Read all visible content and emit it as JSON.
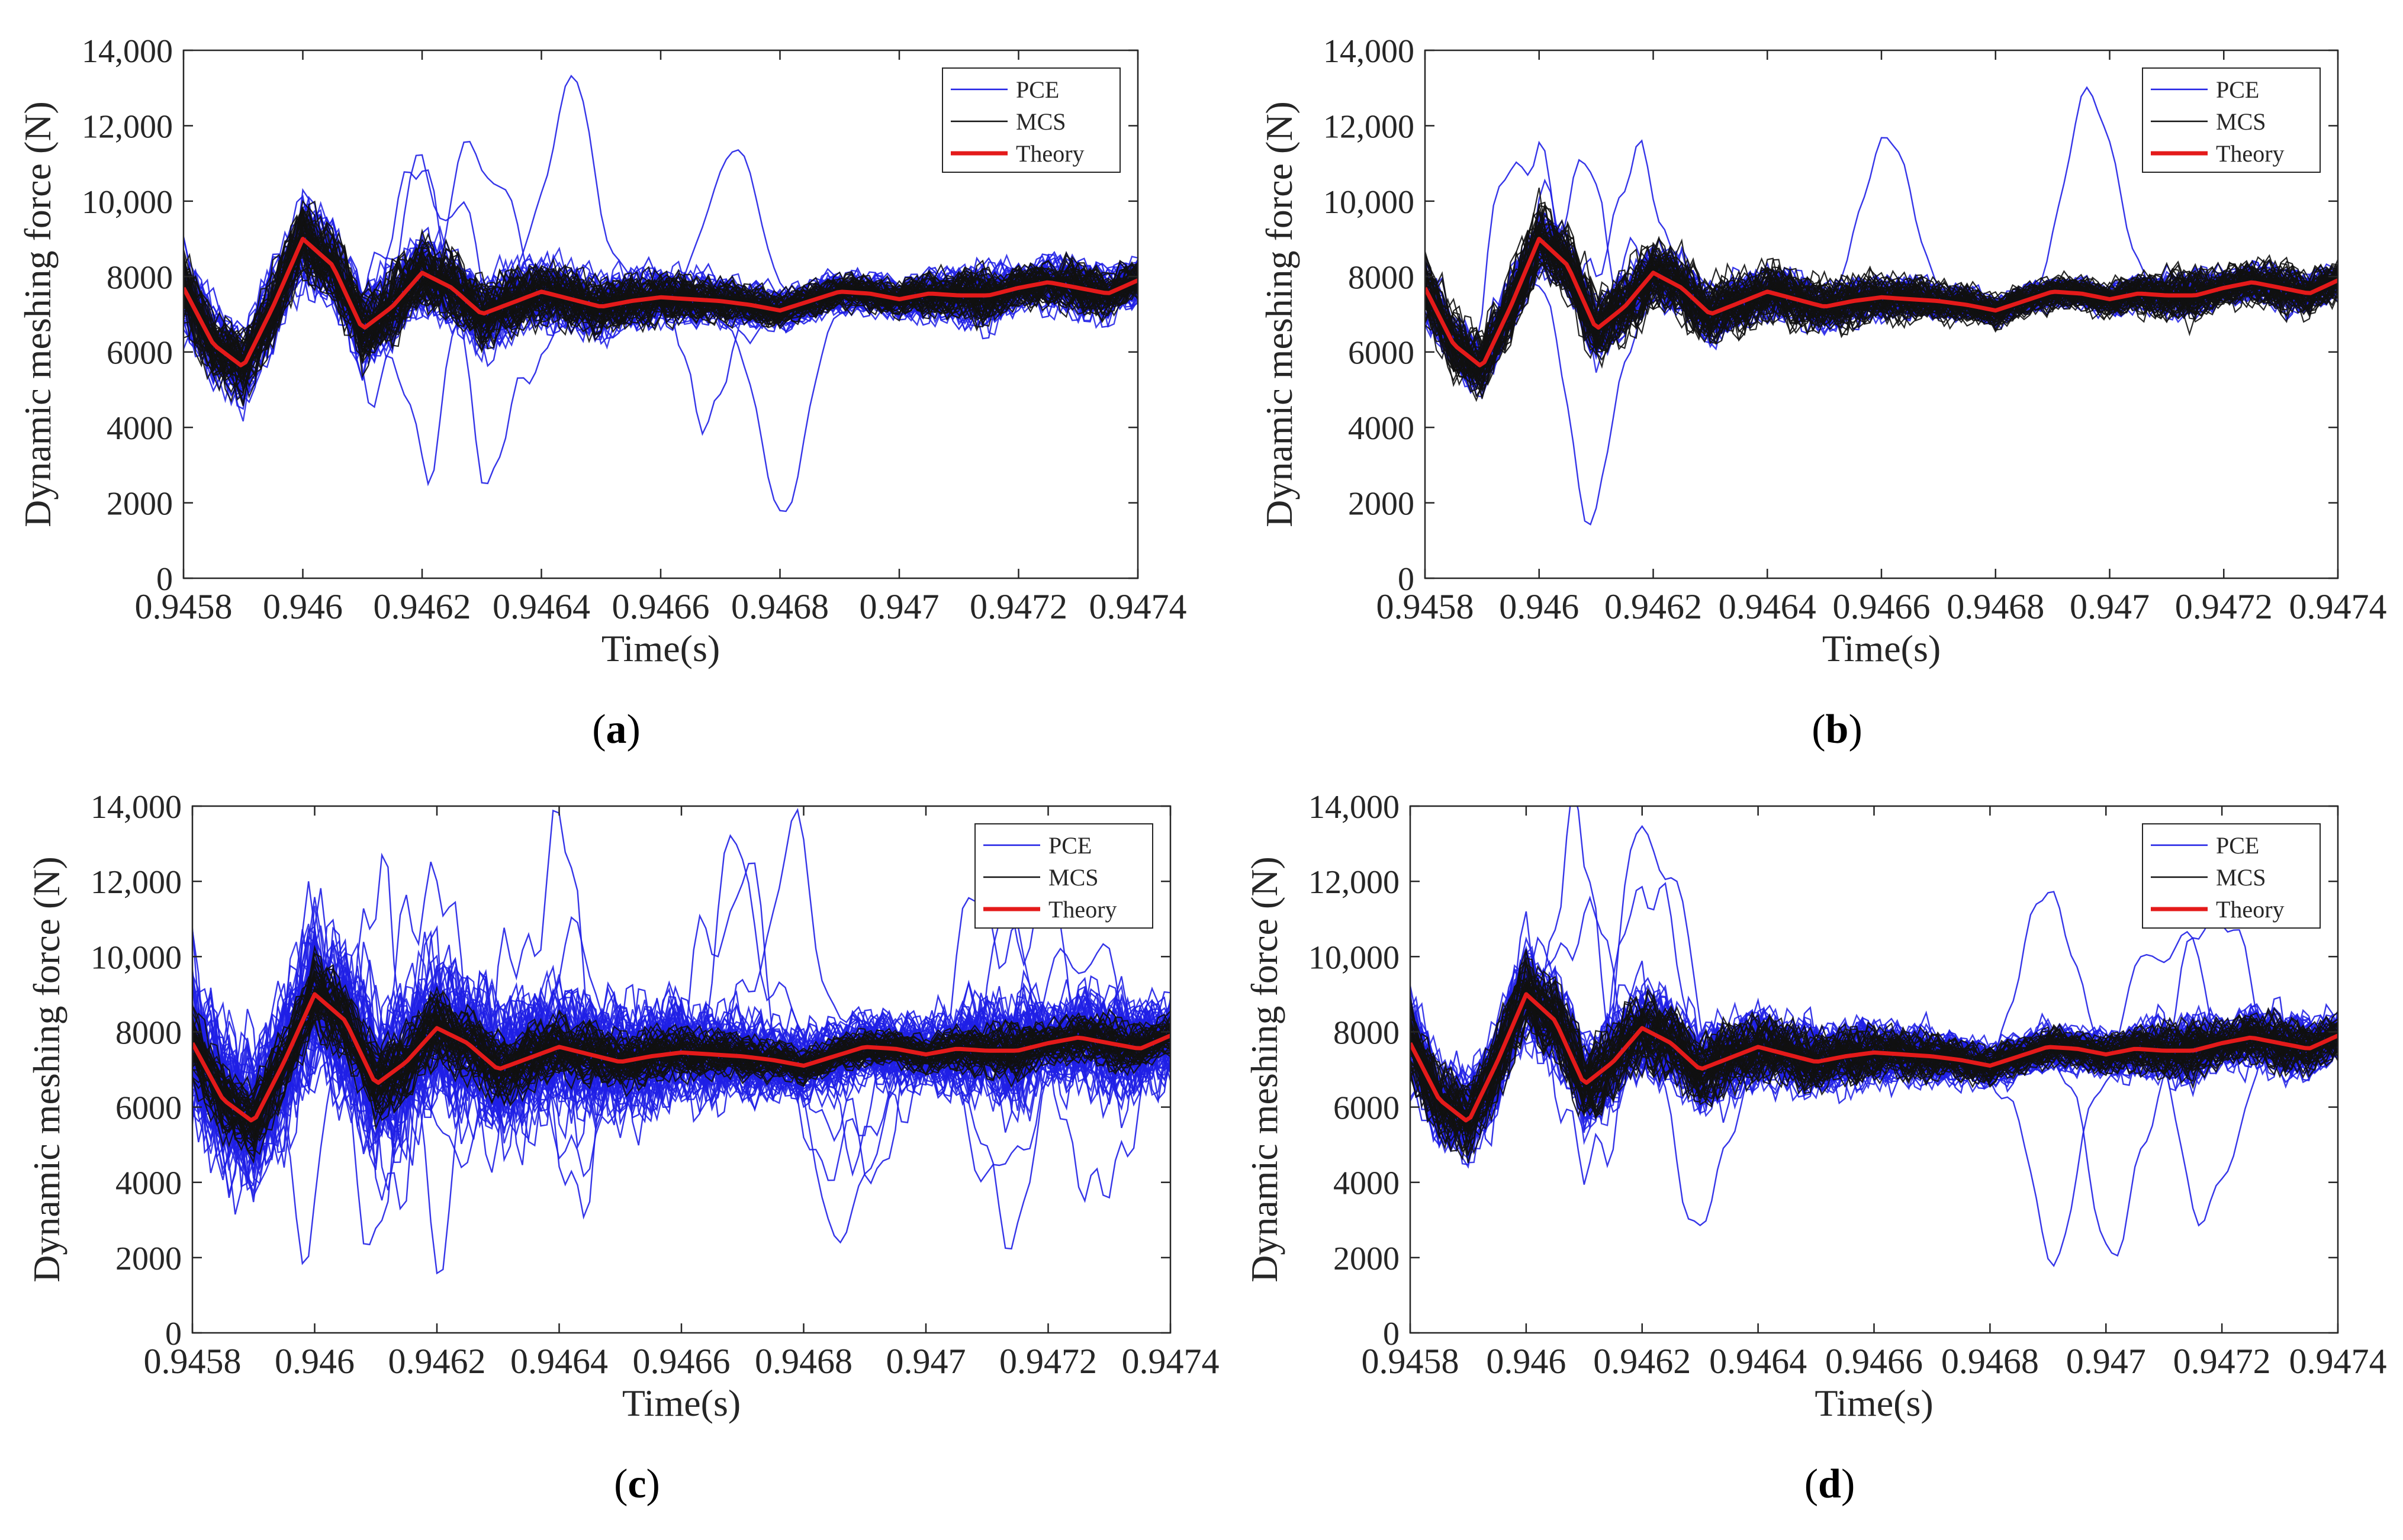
{
  "figure": {
    "colors": {
      "pce": "#1f1fe6",
      "mcs": "#111111",
      "theory": "#e41a1a",
      "axis": "#262626"
    }
  },
  "chart_data": [
    {
      "panel": "a",
      "caption_letter": "a",
      "type": "line",
      "xlabel": "Time(s)",
      "ylabel": "Dynamic meshing force (N)",
      "xlim": [
        0.9458,
        0.9474
      ],
      "ylim": [
        0,
        14000
      ],
      "xticks": [
        0.9458,
        0.946,
        0.9462,
        0.9464,
        0.9466,
        0.9468,
        0.947,
        0.9472,
        0.9474
      ],
      "xtick_labels": [
        "0.9458",
        "0.946",
        "0.9462",
        "0.9464",
        "0.9466",
        "0.9468",
        "0.947",
        "0.9472",
        "0.9474"
      ],
      "yticks": [
        0,
        2000,
        4000,
        6000,
        8000,
        10000,
        12000,
        14000
      ],
      "ytick_labels": [
        "0",
        "2000",
        "4000",
        "6000",
        "8000",
        "10,000",
        "12,000",
        "14,000"
      ],
      "legend": {
        "position": "top-right",
        "entries": [
          "PCE",
          "MCS",
          "Theory"
        ]
      },
      "spread": {
        "pce": 1.0,
        "mcs": 0.9,
        "outliers": 3
      },
      "series": [
        {
          "name": "Theory",
          "x": [
            0.9458,
            0.94585,
            0.9459,
            0.94595,
            0.946,
            0.94605,
            0.9461,
            0.94615,
            0.9462,
            0.94625,
            0.9463,
            0.94635,
            0.9464,
            0.94645,
            0.9465,
            0.94655,
            0.9466,
            0.94665,
            0.9467,
            0.94675,
            0.9468,
            0.94685,
            0.9469,
            0.94695,
            0.947,
            0.94705,
            0.9471,
            0.94715,
            0.9472,
            0.94725,
            0.9473,
            0.94735,
            0.9474
          ],
          "y": [
            7700,
            6200,
            5600,
            7200,
            9000,
            8300,
            6600,
            7200,
            8100,
            7700,
            7000,
            7300,
            7600,
            7400,
            7200,
            7350,
            7450,
            7400,
            7350,
            7250,
            7100,
            7350,
            7600,
            7550,
            7400,
            7550,
            7500,
            7500,
            7700,
            7850,
            7700,
            7550,
            7900
          ]
        }
      ]
    },
    {
      "panel": "b",
      "caption_letter": "b",
      "type": "line",
      "xlabel": "Time(s)",
      "ylabel": "Dynamic meshing force (N)",
      "xlim": [
        0.9458,
        0.9474
      ],
      "ylim": [
        0,
        14000
      ],
      "xticks": [
        0.9458,
        0.946,
        0.9462,
        0.9464,
        0.9466,
        0.9468,
        0.947,
        0.9472,
        0.9474
      ],
      "xtick_labels": [
        "0.9458",
        "0.946",
        "0.9462",
        "0.9464",
        "0.9466",
        "0.9468",
        "0.947",
        "0.9472",
        "0.9474"
      ],
      "yticks": [
        0,
        2000,
        4000,
        6000,
        8000,
        10000,
        12000,
        14000
      ],
      "ytick_labels": [
        "0",
        "2000",
        "4000",
        "6000",
        "8000",
        "10,000",
        "12,000",
        "14,000"
      ],
      "legend": {
        "position": "top-right",
        "entries": [
          "PCE",
          "MCS",
          "Theory"
        ]
      },
      "spread": {
        "pce": 0.75,
        "mcs": 0.9,
        "outliers": 2
      },
      "series": [
        {
          "name": "Theory",
          "x": [
            0.9458,
            0.94585,
            0.9459,
            0.94595,
            0.946,
            0.94605,
            0.9461,
            0.94615,
            0.9462,
            0.94625,
            0.9463,
            0.94635,
            0.9464,
            0.94645,
            0.9465,
            0.94655,
            0.9466,
            0.94665,
            0.9467,
            0.94675,
            0.9468,
            0.94685,
            0.9469,
            0.94695,
            0.947,
            0.94705,
            0.9471,
            0.94715,
            0.9472,
            0.94725,
            0.9473,
            0.94735,
            0.9474
          ],
          "y": [
            7700,
            6200,
            5600,
            7200,
            9000,
            8300,
            6600,
            7200,
            8100,
            7700,
            7000,
            7300,
            7600,
            7400,
            7200,
            7350,
            7450,
            7400,
            7350,
            7250,
            7100,
            7350,
            7600,
            7550,
            7400,
            7550,
            7500,
            7500,
            7700,
            7850,
            7700,
            7550,
            7900
          ]
        }
      ]
    },
    {
      "panel": "c",
      "caption_letter": "c",
      "type": "line",
      "xlabel": "Time(s)",
      "ylabel": "Dynamic meshing force (N)",
      "xlim": [
        0.9458,
        0.9474
      ],
      "ylim": [
        0,
        14000
      ],
      "xticks": [
        0.9458,
        0.946,
        0.9462,
        0.9464,
        0.9466,
        0.9468,
        0.947,
        0.9472,
        0.9474
      ],
      "xtick_labels": [
        "0.9458",
        "0.946",
        "0.9462",
        "0.9464",
        "0.9466",
        "0.9468",
        "0.947",
        "0.9472",
        "0.9474"
      ],
      "yticks": [
        0,
        2000,
        4000,
        6000,
        8000,
        10000,
        12000,
        14000
      ],
      "ytick_labels": [
        "0",
        "2000",
        "4000",
        "6000",
        "8000",
        "10,000",
        "12,000",
        "14,000"
      ],
      "legend": {
        "position": "top-right",
        "entries": [
          "PCE",
          "MCS",
          "Theory"
        ]
      },
      "spread": {
        "pce": 1.8,
        "mcs": 0.9,
        "outliers": 8
      },
      "series": [
        {
          "name": "Theory",
          "x": [
            0.9458,
            0.94585,
            0.9459,
            0.94595,
            0.946,
            0.94605,
            0.9461,
            0.94615,
            0.9462,
            0.94625,
            0.9463,
            0.94635,
            0.9464,
            0.94645,
            0.9465,
            0.94655,
            0.9466,
            0.94665,
            0.9467,
            0.94675,
            0.9468,
            0.94685,
            0.9469,
            0.94695,
            0.947,
            0.94705,
            0.9471,
            0.94715,
            0.9472,
            0.94725,
            0.9473,
            0.94735,
            0.9474
          ],
          "y": [
            7700,
            6200,
            5600,
            7200,
            9000,
            8300,
            6600,
            7200,
            8100,
            7700,
            7000,
            7300,
            7600,
            7400,
            7200,
            7350,
            7450,
            7400,
            7350,
            7250,
            7100,
            7350,
            7600,
            7550,
            7400,
            7550,
            7500,
            7500,
            7700,
            7850,
            7700,
            7550,
            7900
          ]
        }
      ]
    },
    {
      "panel": "d",
      "caption_letter": "d",
      "type": "line",
      "xlabel": "Time(s)",
      "ylabel": "Dynamic meshing force (N)",
      "xlim": [
        0.9458,
        0.9474
      ],
      "ylim": [
        0,
        14000
      ],
      "xticks": [
        0.9458,
        0.946,
        0.9462,
        0.9464,
        0.9466,
        0.9468,
        0.947,
        0.9472,
        0.9474
      ],
      "xtick_labels": [
        "0.9458",
        "0.946",
        "0.9462",
        "0.9464",
        "0.9466",
        "0.9468",
        "0.947",
        "0.9472",
        "0.9474"
      ],
      "yticks": [
        0,
        2000,
        4000,
        6000,
        8000,
        10000,
        12000,
        14000
      ],
      "ytick_labels": [
        "0",
        "2000",
        "4000",
        "6000",
        "8000",
        "10,000",
        "12,000",
        "14,000"
      ],
      "legend": {
        "position": "top-right",
        "entries": [
          "PCE",
          "MCS",
          "Theory"
        ]
      },
      "spread": {
        "pce": 1.1,
        "mcs": 0.9,
        "outliers": 4
      },
      "series": [
        {
          "name": "Theory",
          "x": [
            0.9458,
            0.94585,
            0.9459,
            0.94595,
            0.946,
            0.94605,
            0.9461,
            0.94615,
            0.9462,
            0.94625,
            0.9463,
            0.94635,
            0.9464,
            0.94645,
            0.9465,
            0.94655,
            0.9466,
            0.94665,
            0.9467,
            0.94675,
            0.9468,
            0.94685,
            0.9469,
            0.94695,
            0.947,
            0.94705,
            0.9471,
            0.94715,
            0.9472,
            0.94725,
            0.9473,
            0.94735,
            0.9474
          ],
          "y": [
            7700,
            6200,
            5600,
            7200,
            9000,
            8300,
            6600,
            7200,
            8100,
            7700,
            7000,
            7300,
            7600,
            7400,
            7200,
            7350,
            7450,
            7400,
            7350,
            7250,
            7100,
            7350,
            7600,
            7550,
            7400,
            7550,
            7500,
            7500,
            7700,
            7850,
            7700,
            7550,
            7900
          ]
        }
      ]
    }
  ]
}
